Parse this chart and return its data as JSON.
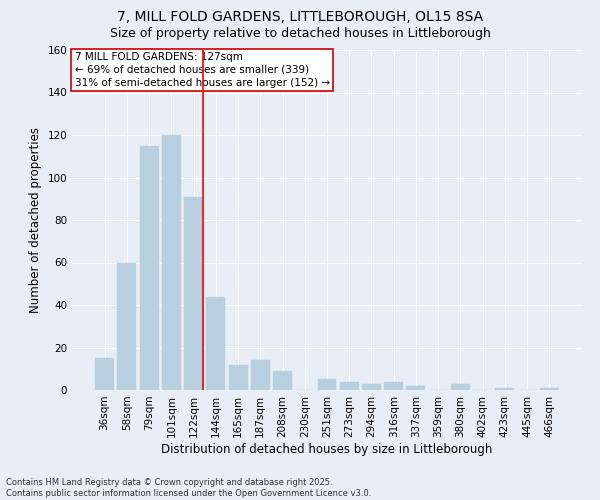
{
  "title_line1": "7, MILL FOLD GARDENS, LITTLEBOROUGH, OL15 8SA",
  "title_line2": "Size of property relative to detached houses in Littleborough",
  "xlabel": "Distribution of detached houses by size in Littleborough",
  "ylabel": "Number of detached properties",
  "categories": [
    "36sqm",
    "58sqm",
    "79sqm",
    "101sqm",
    "122sqm",
    "144sqm",
    "165sqm",
    "187sqm",
    "208sqm",
    "230sqm",
    "251sqm",
    "273sqm",
    "294sqm",
    "316sqm",
    "337sqm",
    "359sqm",
    "380sqm",
    "402sqm",
    "423sqm",
    "445sqm",
    "466sqm"
  ],
  "values": [
    15,
    60,
    115,
    120,
    91,
    44,
    12,
    14,
    9,
    0,
    5,
    4,
    3,
    4,
    2,
    0,
    3,
    0,
    1,
    0,
    1
  ],
  "bar_color": "#b8cfe0",
  "bar_edgecolor": "#b8cfe0",
  "reference_line_color": "red",
  "reference_line_index": 4,
  "ylim": [
    0,
    160
  ],
  "yticks": [
    0,
    20,
    40,
    60,
    80,
    100,
    120,
    140,
    160
  ],
  "annotation_text_line1": "7 MILL FOLD GARDENS: 127sqm",
  "annotation_text_line2": "← 69% of detached houses are smaller (339)",
  "annotation_text_line3": "31% of semi-detached houses are larger (152) →",
  "annotation_box_edgecolor": "#cc0000",
  "background_color": "#e8eef5",
  "grid_color": "#ffffff",
  "footer_text": "Contains HM Land Registry data © Crown copyright and database right 2025.\nContains public sector information licensed under the Open Government Licence v3.0.",
  "title_fontsize": 10,
  "subtitle_fontsize": 9,
  "axis_label_fontsize": 8.5,
  "tick_fontsize": 7.5,
  "annotation_fontsize": 7.5,
  "footer_fontsize": 6
}
